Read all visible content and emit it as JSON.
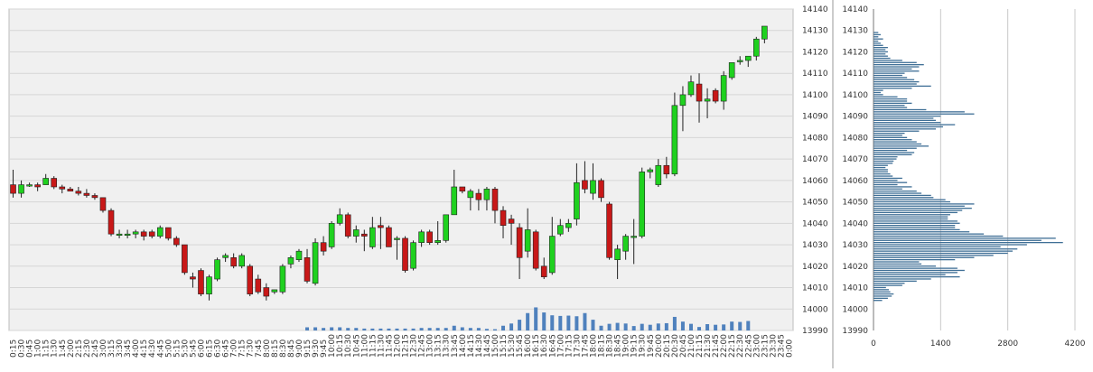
{
  "colors": {
    "plot_bg": "#f0f0f0",
    "grid": "#d6d6d6",
    "bull": "#1fd11f",
    "bear": "#c81818",
    "wick": "#222222",
    "volume": "#4f81bd",
    "profile": "#3f6f96",
    "profile_grid": "#c8c8c8"
  },
  "chart_data": [
    {
      "type": "candlestick",
      "title": "",
      "xlabel": "",
      "ylabel": "",
      "ylim": [
        13990,
        14140
      ],
      "yticks": [
        13990,
        14000,
        14010,
        14020,
        14030,
        14040,
        14050,
        14060,
        14070,
        14080,
        14090,
        14100,
        14110,
        14120,
        14130,
        14140
      ],
      "grid": true,
      "x_labels": [
        "0:15",
        "0:30",
        "0:45",
        "1:00",
        "1:15",
        "1:30",
        "1:45",
        "2:00",
        "2:15",
        "2:30",
        "2:45",
        "3:00",
        "3:15",
        "3:30",
        "3:45",
        "4:00",
        "4:15",
        "4:30",
        "4:45",
        "5:00",
        "5:15",
        "5:30",
        "5:45",
        "6:00",
        "6:15",
        "6:30",
        "6:45",
        "7:00",
        "7:15",
        "7:30",
        "7:45",
        "8:00",
        "8:15",
        "8:30",
        "8:45",
        "9:00",
        "9:15",
        "9:30",
        "9:45",
        "10:00",
        "10:15",
        "10:30",
        "10:45",
        "11:00",
        "11:15",
        "11:30",
        "11:45",
        "12:00",
        "12:15",
        "12:30",
        "12:45",
        "13:00",
        "13:15",
        "13:30",
        "13:45",
        "14:00",
        "14:15",
        "14:30",
        "14:45",
        "15:00",
        "15:15",
        "15:30",
        "15:45",
        "16:00",
        "16:15",
        "16:30",
        "16:45",
        "17:00",
        "17:15",
        "17:30",
        "17:45",
        "18:00",
        "18:15",
        "18:30",
        "18:45",
        "19:00",
        "19:15",
        "19:30",
        "19:45",
        "20:00",
        "20:15",
        "20:30",
        "20:45",
        "21:00",
        "21:15",
        "21:30",
        "21:45",
        "22:00",
        "22:15",
        "22:30",
        "22:45",
        "23:00",
        "23:15",
        "23:30",
        "23:45",
        "0:00"
      ],
      "candles": [
        {
          "o": 14058,
          "h": 14065,
          "l": 14052,
          "c": 14054
        },
        {
          "o": 14054,
          "h": 14060,
          "l": 14052,
          "c": 14058
        },
        {
          "o": 14058,
          "h": 14059,
          "l": 14057,
          "c": 14058
        },
        {
          "o": 14058,
          "h": 14059,
          "l": 14055,
          "c": 14057
        },
        {
          "o": 14058,
          "h": 14063,
          "l": 14058,
          "c": 14061
        },
        {
          "o": 14061,
          "h": 14062,
          "l": 14056,
          "c": 14057
        },
        {
          "o": 14057,
          "h": 14058,
          "l": 14054,
          "c": 14056
        },
        {
          "o": 14056,
          "h": 14057,
          "l": 14055,
          "c": 14055
        },
        {
          "o": 14055,
          "h": 14057,
          "l": 14053,
          "c": 14054
        },
        {
          "o": 14054,
          "h": 14056,
          "l": 14052,
          "c": 14053
        },
        {
          "o": 14053,
          "h": 14054,
          "l": 14051,
          "c": 14052
        },
        {
          "o": 14052,
          "h": 14052,
          "l": 14045,
          "c": 14046
        },
        {
          "o": 14046,
          "h": 14047,
          "l": 14034,
          "c": 14035
        },
        {
          "o": 14035,
          "h": 14037,
          "l": 14033,
          "c": 14035
        },
        {
          "o": 14035,
          "h": 14037,
          "l": 14033,
          "c": 14035
        },
        {
          "o": 14035,
          "h": 14037,
          "l": 14033,
          "c": 14036
        },
        {
          "o": 14036,
          "h": 14037,
          "l": 14032,
          "c": 14034
        },
        {
          "o": 14036,
          "h": 14037,
          "l": 14033,
          "c": 14034
        },
        {
          "o": 14034,
          "h": 14039,
          "l": 14033,
          "c": 14038
        },
        {
          "o": 14038,
          "h": 14038,
          "l": 14032,
          "c": 14033
        },
        {
          "o": 14033,
          "h": 14034,
          "l": 14029,
          "c": 14030
        },
        {
          "o": 14030,
          "h": 14030,
          "l": 14016,
          "c": 14017
        },
        {
          "o": 14015,
          "h": 14017,
          "l": 14010,
          "c": 14014
        },
        {
          "o": 14018,
          "h": 14019,
          "l": 14006,
          "c": 14007
        },
        {
          "o": 14007,
          "h": 14016,
          "l": 14004,
          "c": 14015
        },
        {
          "o": 14014,
          "h": 14024,
          "l": 14013,
          "c": 14023
        },
        {
          "o": 14024,
          "h": 14026,
          "l": 14022,
          "c": 14025
        },
        {
          "o": 14024,
          "h": 14026,
          "l": 14019,
          "c": 14020
        },
        {
          "o": 14020,
          "h": 14026,
          "l": 14019,
          "c": 14025
        },
        {
          "o": 14020,
          "h": 14021,
          "l": 14006,
          "c": 14007
        },
        {
          "o": 14014,
          "h": 14016,
          "l": 14007,
          "c": 14008
        },
        {
          "o": 14010,
          "h": 14012,
          "l": 14004,
          "c": 14006
        },
        {
          "o": 14008,
          "h": 14009,
          "l": 14007,
          "c": 14009
        },
        {
          "o": 14008,
          "h": 14021,
          "l": 14007,
          "c": 14020
        },
        {
          "o": 14021,
          "h": 14025,
          "l": 14019,
          "c": 14024
        },
        {
          "o": 14023,
          "h": 14028,
          "l": 14022,
          "c": 14027
        },
        {
          "o": 14024,
          "h": 14028,
          "l": 14012,
          "c": 14013
        },
        {
          "o": 14012,
          "h": 14033,
          "l": 14011,
          "c": 14031
        },
        {
          "o": 14031,
          "h": 14034,
          "l": 14025,
          "c": 14027
        },
        {
          "o": 14029,
          "h": 14041,
          "l": 14028,
          "c": 14040
        },
        {
          "o": 14040,
          "h": 14047,
          "l": 14039,
          "c": 14044
        },
        {
          "o": 14044,
          "h": 14045,
          "l": 14033,
          "c": 14034
        },
        {
          "o": 14034,
          "h": 14039,
          "l": 14031,
          "c": 14037
        },
        {
          "o": 14035,
          "h": 14037,
          "l": 14027,
          "c": 14034
        },
        {
          "o": 14029,
          "h": 14043,
          "l": 14028,
          "c": 14038
        },
        {
          "o": 14039,
          "h": 14043,
          "l": 14028,
          "c": 14038
        },
        {
          "o": 14038,
          "h": 14039,
          "l": 14029,
          "c": 14029
        },
        {
          "o": 14033,
          "h": 14034,
          "l": 14023,
          "c": 14033
        },
        {
          "o": 14033,
          "h": 14034,
          "l": 14017,
          "c": 14018
        },
        {
          "o": 14019,
          "h": 14032,
          "l": 14018,
          "c": 14031
        },
        {
          "o": 14031,
          "h": 14037,
          "l": 14029,
          "c": 14036
        },
        {
          "o": 14036,
          "h": 14037,
          "l": 14030,
          "c": 14031
        },
        {
          "o": 14031,
          "h": 14041,
          "l": 14030,
          "c": 14032
        },
        {
          "o": 14032,
          "h": 14044,
          "l": 14031,
          "c": 14044
        },
        {
          "o": 14044,
          "h": 14065,
          "l": 14044,
          "c": 14057
        },
        {
          "o": 14057,
          "h": 14057,
          "l": 14054,
          "c": 14055
        },
        {
          "o": 14052,
          "h": 14056,
          "l": 14046,
          "c": 14055
        },
        {
          "o": 14054,
          "h": 14056,
          "l": 14046,
          "c": 14051
        },
        {
          "o": 14051,
          "h": 14057,
          "l": 14046,
          "c": 14056
        },
        {
          "o": 14056,
          "h": 14057,
          "l": 14040,
          "c": 14046
        },
        {
          "o": 14046,
          "h": 14048,
          "l": 14033,
          "c": 14039
        },
        {
          "o": 14042,
          "h": 14044,
          "l": 14030,
          "c": 14040
        },
        {
          "o": 14038,
          "h": 14040,
          "l": 14014,
          "c": 14024
        },
        {
          "o": 14027,
          "h": 14047,
          "l": 14024,
          "c": 14037
        },
        {
          "o": 14036,
          "h": 14037,
          "l": 14018,
          "c": 14019
        },
        {
          "o": 14020,
          "h": 14024,
          "l": 14014,
          "c": 14015
        },
        {
          "o": 14017,
          "h": 14043,
          "l": 14016,
          "c": 14034
        },
        {
          "o": 14035,
          "h": 14042,
          "l": 14034,
          "c": 14039
        },
        {
          "o": 14038,
          "h": 14042,
          "l": 14036,
          "c": 14040
        },
        {
          "o": 14042,
          "h": 14068,
          "l": 14039,
          "c": 14059
        },
        {
          "o": 14060,
          "h": 14069,
          "l": 14054,
          "c": 14056
        },
        {
          "o": 14054,
          "h": 14068,
          "l": 14051,
          "c": 14060
        },
        {
          "o": 14060,
          "h": 14061,
          "l": 14050,
          "c": 14052
        },
        {
          "o": 14049,
          "h": 14050,
          "l": 14023,
          "c": 14024
        },
        {
          "o": 14023,
          "h": 14030,
          "l": 14014,
          "c": 14028
        },
        {
          "o": 14027,
          "h": 14035,
          "l": 14023,
          "c": 14034
        },
        {
          "o": 14034,
          "h": 14042,
          "l": 14021,
          "c": 14034
        },
        {
          "o": 14034,
          "h": 14066,
          "l": 14033,
          "c": 14064
        },
        {
          "o": 14064,
          "h": 14066,
          "l": 14061,
          "c": 14065
        },
        {
          "o": 14058,
          "h": 14070,
          "l": 14057,
          "c": 14067
        },
        {
          "o": 14067,
          "h": 14071,
          "l": 14061,
          "c": 14063
        },
        {
          "o": 14063,
          "h": 14101,
          "l": 14062,
          "c": 14095
        },
        {
          "o": 14095,
          "h": 14104,
          "l": 14083,
          "c": 14100
        },
        {
          "o": 14100,
          "h": 14109,
          "l": 14099,
          "c": 14106
        },
        {
          "o": 14105,
          "h": 14110,
          "l": 14087,
          "c": 14097
        },
        {
          "o": 14097,
          "h": 14103,
          "l": 14089,
          "c": 14098
        },
        {
          "o": 14102,
          "h": 14103,
          "l": 14096,
          "c": 14097
        },
        {
          "o": 14097,
          "h": 14111,
          "l": 14093,
          "c": 14109
        },
        {
          "o": 14108,
          "h": 14115,
          "l": 14107,
          "c": 14115
        },
        {
          "o": 14116,
          "h": 14118,
          "l": 14114,
          "c": 14116
        },
        {
          "o": 14116,
          "h": 14117,
          "l": 14113,
          "c": 14118
        },
        {
          "o": 14118,
          "h": 14127,
          "l": 14116,
          "c": 14126
        },
        {
          "o": 14126,
          "h": 14132,
          "l": 14124,
          "c": 14132
        }
      ],
      "volume": [
        0,
        0,
        0,
        0,
        0,
        0,
        0,
        0,
        0,
        0,
        0,
        0,
        0,
        0,
        0,
        0,
        0,
        0,
        0,
        0,
        0,
        0,
        0,
        0,
        0,
        0,
        0,
        0,
        0,
        0,
        0,
        0,
        0,
        0,
        0,
        0,
        1,
        1,
        0.8,
        1,
        1,
        0.8,
        0.8,
        0.6,
        0.6,
        0.6,
        0.6,
        0.6,
        0.6,
        0.6,
        0.8,
        0.8,
        0.8,
        0.8,
        1.5,
        1,
        0.8,
        0.8,
        0.5,
        0.4,
        1.5,
        2.2,
        3.4,
        5.5,
        7.3,
        5.7,
        4.8,
        4.6,
        4.7,
        4.5,
        5.5,
        3.4,
        1.5,
        2.1,
        2.4,
        2.2,
        1.4,
        2.1,
        1.8,
        2.2,
        2.3,
        4.3,
        2.8,
        2.1,
        1.1,
        2.0,
        1.8,
        1.9,
        2.8,
        2.7,
        3.0,
        0,
        0,
        0,
        0
      ]
    },
    {
      "type": "bar",
      "orientation": "horizontal",
      "description_label": "",
      "xlim": [
        0,
        4200
      ],
      "xticks": [
        0,
        1400,
        2800,
        4200
      ],
      "ylim": [
        13990,
        14140
      ],
      "yticks": [
        13990,
        14000,
        14010,
        14020,
        14030,
        14040,
        14050,
        14060,
        14070,
        14080,
        14090,
        14100,
        14110,
        14120,
        14130,
        14140
      ],
      "price_levels_start": 14004,
      "price_step": 1,
      "values": [
        180,
        300,
        380,
        420,
        350,
        320,
        260,
        600,
        650,
        900,
        1200,
        1800,
        1500,
        1750,
        1900,
        1750,
        1300,
        1000,
        950,
        1700,
        2100,
        2500,
        2800,
        2900,
        3000,
        2650,
        3200,
        3950,
        3500,
        3800,
        2700,
        2300,
        2000,
        1800,
        1700,
        1700,
        1800,
        1750,
        1550,
        1550,
        1600,
        1750,
        1850,
        2050,
        1900,
        2100,
        1600,
        1500,
        1250,
        1200,
        1000,
        900,
        600,
        800,
        500,
        700,
        500,
        600,
        400,
        350,
        300,
        300,
        250,
        300,
        400,
        420,
        480,
        500,
        800,
        850,
        700,
        900,
        1150,
        1000,
        900,
        800,
        700,
        600,
        650,
        950,
        1300,
        1450,
        1700,
        1400,
        1300,
        1250,
        1400,
        2100,
        1900,
        1100,
        700,
        650,
        800,
        700,
        700,
        500,
        200,
        150,
        200,
        800,
        1200,
        900,
        950,
        850,
        700,
        600,
        650,
        950,
        800,
        950,
        1050,
        900,
        600,
        350,
        300,
        250,
        300,
        250,
        300,
        200,
        150,
        100,
        200,
        100,
        150,
        100
      ]
    }
  ]
}
